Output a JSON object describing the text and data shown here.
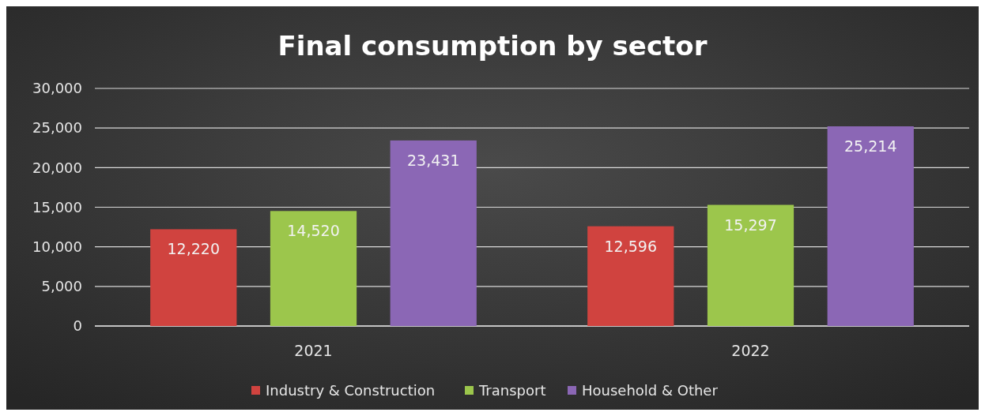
{
  "chart_data": {
    "type": "bar",
    "title": "Final consumption by sector",
    "categories": [
      "2021",
      "2022"
    ],
    "series": [
      {
        "name": "Industry & Construction",
        "color": "#d0433f",
        "values": [
          12220,
          12596
        ],
        "value_labels": [
          "12,220",
          "12,596"
        ]
      },
      {
        "name": "Transport",
        "color": "#9cc64c",
        "values": [
          14520,
          15297
        ],
        "value_labels": [
          "14,520",
          "15,297"
        ]
      },
      {
        "name": "Household & Other",
        "color": "#8b67b5",
        "values": [
          23431,
          25214
        ],
        "value_labels": [
          "23,431",
          "25,214"
        ]
      }
    ],
    "ylim": [
      0,
      30000
    ],
    "yticks": [
      {
        "value": 0,
        "label": "0"
      },
      {
        "value": 5000,
        "label": "5,000"
      },
      {
        "value": 10000,
        "label": "10,000"
      },
      {
        "value": 15000,
        "label": "15,000"
      },
      {
        "value": 20000,
        "label": "20,000"
      },
      {
        "value": 25000,
        "label": "25,000"
      },
      {
        "value": 30000,
        "label": "30,000"
      }
    ],
    "grid": "y",
    "legend": "bottom"
  }
}
